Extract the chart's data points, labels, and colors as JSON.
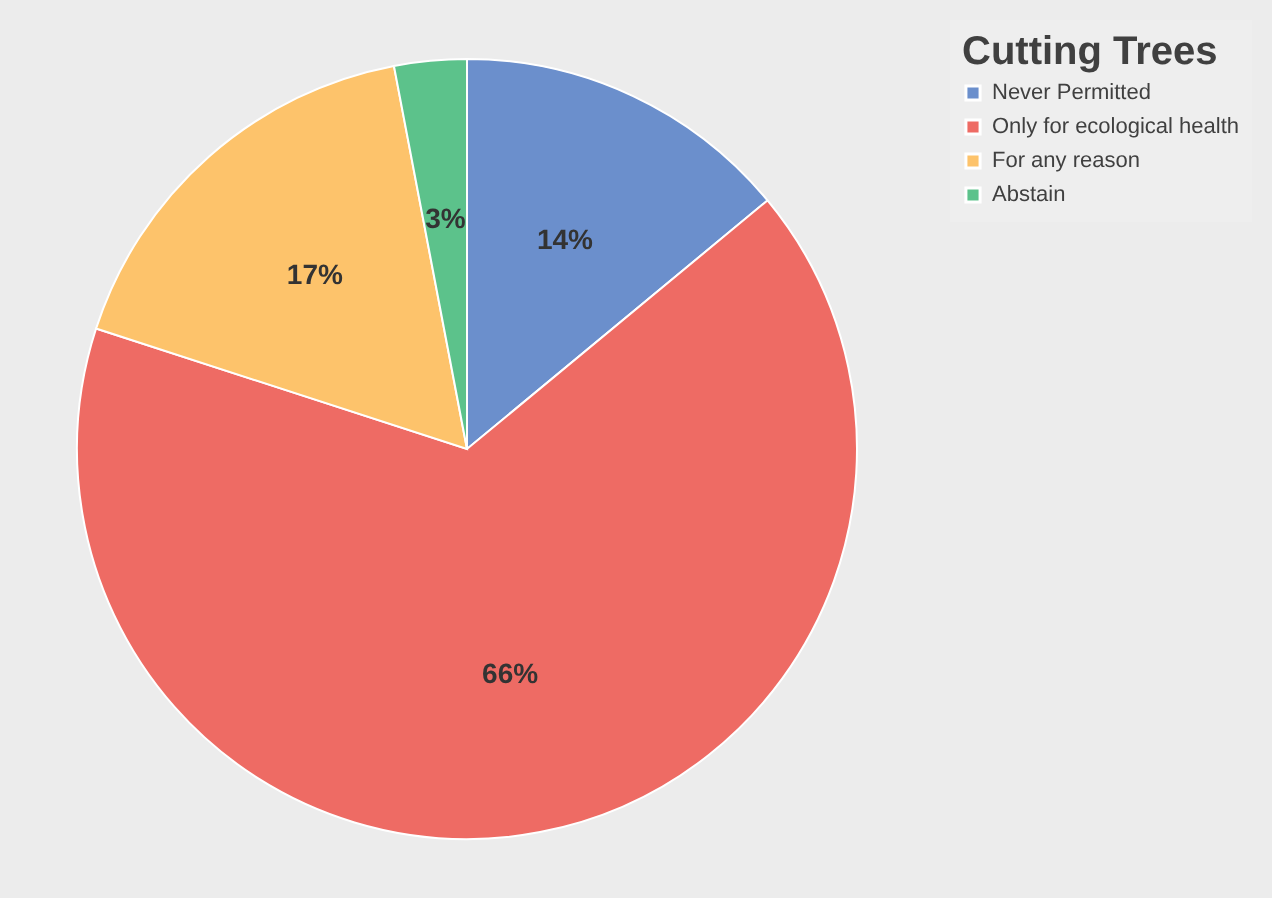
{
  "chart_data": {
    "type": "pie",
    "legend_title": "Cutting Trees",
    "categories": [
      "Never Permitted",
      "Only for ecological health",
      "For any reason",
      "Abstain"
    ],
    "values": [
      14,
      66,
      17,
      3
    ],
    "colors": [
      "#6b8fcc",
      "#ee6b64",
      "#fdc36b",
      "#5cc28b"
    ],
    "value_labels": [
      "14%",
      "66%",
      "17%",
      "3%"
    ],
    "legend": "right"
  }
}
